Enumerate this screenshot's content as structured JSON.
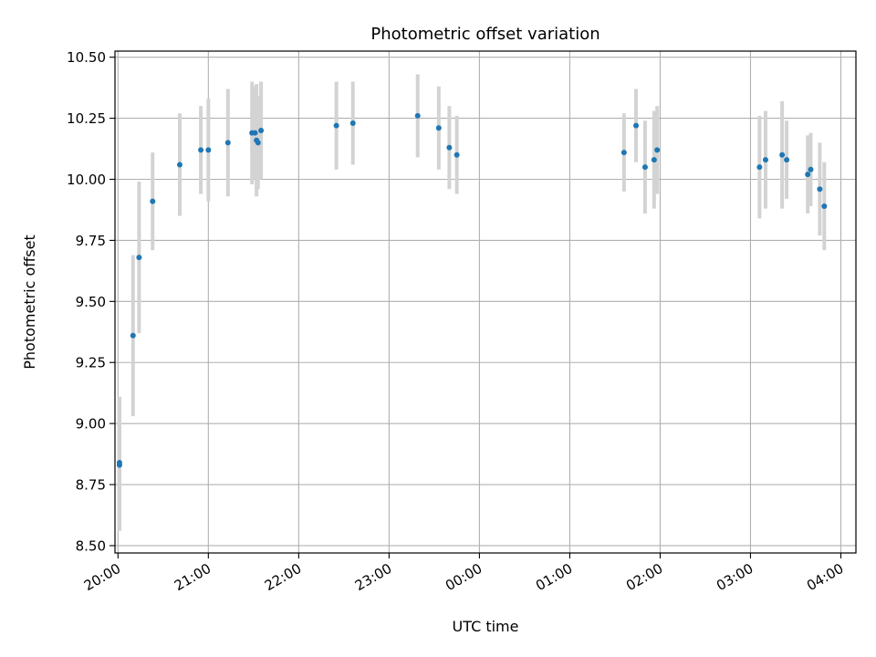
{
  "chart_data": {
    "type": "scatter",
    "title": "Photometric offset variation",
    "xlabel": "UTC time",
    "ylabel": "Photometric offset",
    "x_axis_type": "time",
    "xlim": [
      "19:58",
      "04:10"
    ],
    "ylim": [
      8.47,
      10.525
    ],
    "grid": true,
    "x_tick_rotation_deg": 30,
    "xticks": [
      {
        "value": "20:00",
        "label": "20:00"
      },
      {
        "value": "21:00",
        "label": "21:00"
      },
      {
        "value": "22:00",
        "label": "22:00"
      },
      {
        "value": "23:00",
        "label": "23:00"
      },
      {
        "value": "00:00",
        "label": "00:00"
      },
      {
        "value": "01:00",
        "label": "01:00"
      },
      {
        "value": "02:00",
        "label": "02:00"
      },
      {
        "value": "03:00",
        "label": "03:00"
      },
      {
        "value": "04:00",
        "label": "04:00"
      }
    ],
    "yticks": [
      {
        "value": 8.5,
        "label": "8.50"
      },
      {
        "value": 8.75,
        "label": "8.75"
      },
      {
        "value": 9.0,
        "label": "9.00"
      },
      {
        "value": 9.25,
        "label": "9.25"
      },
      {
        "value": 9.5,
        "label": "9.50"
      },
      {
        "value": 9.75,
        "label": "9.75"
      },
      {
        "value": 10.0,
        "label": "10.00"
      },
      {
        "value": 10.25,
        "label": "10.25"
      },
      {
        "value": 10.5,
        "label": "10.50"
      }
    ],
    "colors": {
      "points": "#1f77b4",
      "error_bars": "#d3d3d3",
      "grid": "#b0b0b0"
    },
    "points": [
      {
        "x": "20:01",
        "y": 8.84,
        "err": 0.27
      },
      {
        "x": "20:01",
        "y": 8.83,
        "err": 0.27
      },
      {
        "x": "20:10",
        "y": 9.36,
        "err": 0.33
      },
      {
        "x": "20:14",
        "y": 9.68,
        "err": 0.31
      },
      {
        "x": "20:23",
        "y": 9.91,
        "err": 0.2
      },
      {
        "x": "20:41",
        "y": 10.06,
        "err": 0.21
      },
      {
        "x": "20:55",
        "y": 10.12,
        "err": 0.18
      },
      {
        "x": "21:00",
        "y": 10.12,
        "err": 0.21
      },
      {
        "x": "21:13",
        "y": 10.15,
        "err": 0.22
      },
      {
        "x": "21:29",
        "y": 10.19,
        "err": 0.21
      },
      {
        "x": "21:31",
        "y": 10.19,
        "err": 0.19
      },
      {
        "x": "21:32",
        "y": 10.16,
        "err": 0.23
      },
      {
        "x": "21:33",
        "y": 10.15,
        "err": 0.19
      },
      {
        "x": "21:35",
        "y": 10.2,
        "err": 0.2
      },
      {
        "x": "22:25",
        "y": 10.22,
        "err": 0.18
      },
      {
        "x": "22:36",
        "y": 10.23,
        "err": 0.17
      },
      {
        "x": "23:19",
        "y": 10.26,
        "err": 0.17
      },
      {
        "x": "23:33",
        "y": 10.21,
        "err": 0.17
      },
      {
        "x": "23:40",
        "y": 10.13,
        "err": 0.17
      },
      {
        "x": "23:45",
        "y": 10.1,
        "err": 0.16
      },
      {
        "x": "01:36",
        "y": 10.11,
        "err": 0.16
      },
      {
        "x": "01:44",
        "y": 10.22,
        "err": 0.15
      },
      {
        "x": "01:50",
        "y": 10.05,
        "err": 0.19
      },
      {
        "x": "01:56",
        "y": 10.08,
        "err": 0.2
      },
      {
        "x": "01:58",
        "y": 10.12,
        "err": 0.18
      },
      {
        "x": "03:06",
        "y": 10.05,
        "err": 0.21
      },
      {
        "x": "03:10",
        "y": 10.08,
        "err": 0.2
      },
      {
        "x": "03:21",
        "y": 10.1,
        "err": 0.22
      },
      {
        "x": "03:24",
        "y": 10.08,
        "err": 0.16
      },
      {
        "x": "03:38",
        "y": 10.02,
        "err": 0.16
      },
      {
        "x": "03:40",
        "y": 10.04,
        "err": 0.15
      },
      {
        "x": "03:46",
        "y": 9.96,
        "err": 0.19
      },
      {
        "x": "03:49",
        "y": 9.89,
        "err": 0.18
      }
    ]
  }
}
